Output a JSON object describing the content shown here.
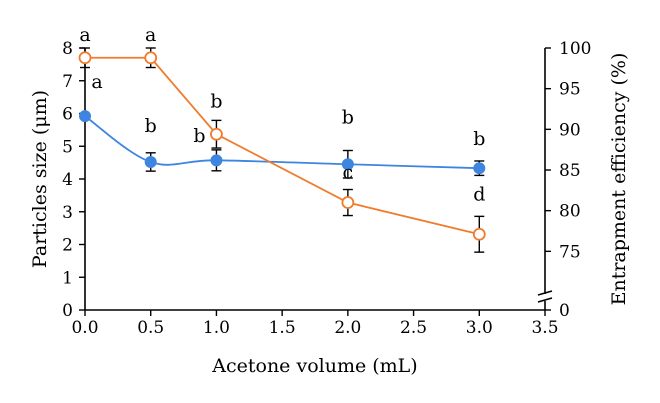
{
  "chart_data": {
    "type": "line",
    "xlabel": "Acetone volume (mL)",
    "ylabel_left": "Particles size (μm)",
    "ylabel_right": "Entrapment efficiency (%)",
    "xlim": [
      0,
      3.5
    ],
    "ylim_left": [
      0,
      8
    ],
    "ylim_right": [
      70,
      100
    ],
    "right_axis_break": true,
    "x_ticks": [
      "0.0",
      "0.5",
      "1.0",
      "1.5",
      "2.0",
      "2.5",
      "3.0",
      "3.5"
    ],
    "y_left_ticks": [
      "0",
      "1",
      "2",
      "3",
      "4",
      "5",
      "6",
      "7",
      "8"
    ],
    "y_right_ticks": [
      "0",
      "75",
      "80",
      "85",
      "90",
      "95",
      "100"
    ],
    "series": [
      {
        "axis": "left",
        "color": "#3d85e0",
        "marker": "filled-circle",
        "x": [
          0.0,
          0.5,
          1.0,
          2.0,
          3.0
        ],
        "y": [
          5.92,
          4.52,
          4.57,
          4.45,
          4.33
        ],
        "error": [
          0.0,
          0.28,
          0.32,
          0.42,
          0.22
        ],
        "labels": [
          "a",
          "b",
          "b",
          "b",
          "b"
        ]
      },
      {
        "axis": "right",
        "color": "#f07b2c",
        "marker": "open-circle",
        "x": [
          0.0,
          0.5,
          1.0,
          2.0,
          3.0
        ],
        "y": [
          98.8,
          98.8,
          89.4,
          81.0,
          77.1
        ],
        "error": [
          1.2,
          1.2,
          1.7,
          1.6,
          2.2
        ],
        "labels": [
          "a",
          "a",
          "b",
          "c",
          "d"
        ]
      }
    ]
  }
}
